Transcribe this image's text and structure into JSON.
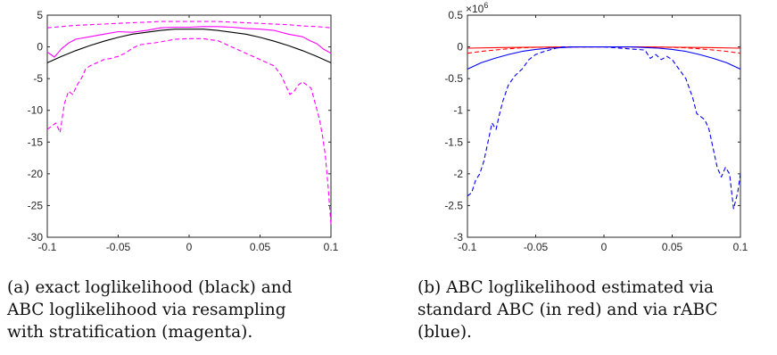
{
  "panels": [
    {
      "caption_lines": [
        "(a) exact loglikelihood (black) and",
        "ABC loglikelihood via resampling",
        "with stratification (magenta)."
      ],
      "chart_data": {
        "type": "line",
        "title": "",
        "xlabel": "",
        "ylabel": "",
        "xlim": [
          -0.1,
          0.1
        ],
        "ylim": [
          -30,
          5
        ],
        "x_ticks": [
          -0.1,
          -0.05,
          0,
          0.05,
          0.1
        ],
        "x_tick_labels": [
          "-0.1",
          "-0.05",
          "0",
          "0.05",
          "0.1"
        ],
        "y_ticks": [
          5,
          0,
          -5,
          -10,
          -15,
          -20,
          -25,
          -30
        ],
        "y_tick_labels": [
          "5",
          "0",
          "-5",
          "-10",
          "-15",
          "-20",
          "-25",
          "-30"
        ],
        "grid": false,
        "series": [
          {
            "color": "#000000",
            "style": "solid",
            "x": [
              -0.1,
              -0.09,
              -0.08,
              -0.07,
              -0.06,
              -0.05,
              -0.04,
              -0.03,
              -0.02,
              -0.01,
              0,
              0.01,
              0.02,
              0.03,
              0.04,
              0.05,
              0.06,
              0.07,
              0.08,
              0.09,
              0.1
            ],
            "y": [
              -2.5,
              -1.5,
              -0.6,
              0.2,
              0.9,
              1.5,
              2.0,
              2.3,
              2.6,
              2.8,
              2.8,
              2.8,
              2.6,
              2.3,
              2.0,
              1.5,
              0.9,
              0.2,
              -0.6,
              -1.5,
              -2.5
            ]
          },
          {
            "color": "#ff00ff",
            "style": "solid",
            "x": [
              -0.1,
              -0.095,
              -0.09,
              -0.085,
              -0.08,
              -0.07,
              -0.06,
              -0.05,
              -0.04,
              -0.03,
              -0.02,
              -0.01,
              0,
              0.01,
              0.02,
              0.03,
              0.04,
              0.05,
              0.06,
              0.07,
              0.08,
              0.085,
              0.09,
              0.095,
              0.1
            ],
            "y": [
              -0.8,
              -1.6,
              -0.3,
              0.6,
              1.2,
              1.6,
              2.0,
              2.4,
              2.3,
              2.6,
              3.0,
              3.1,
              3.1,
              3.2,
              3.2,
              3.1,
              2.9,
              2.8,
              2.6,
              2.0,
              1.6,
              1.0,
              0.5,
              -0.4,
              -1.0
            ]
          },
          {
            "color": "#ff00ff",
            "style": "dashed",
            "x": [
              -0.1,
              -0.09,
              -0.08,
              -0.07,
              -0.06,
              -0.05,
              -0.04,
              -0.03,
              -0.02,
              -0.01,
              0,
              0.01,
              0.02,
              0.03,
              0.04,
              0.05,
              0.06,
              0.07,
              0.08,
              0.09,
              0.1
            ],
            "y": [
              3.0,
              3.2,
              3.4,
              3.5,
              3.6,
              3.7,
              3.8,
              3.9,
              4.0,
              4.0,
              4.0,
              4.0,
              4.0,
              3.9,
              3.8,
              3.7,
              3.6,
              3.5,
              3.3,
              3.2,
              3.0
            ]
          },
          {
            "color": "#ff00ff",
            "style": "dashed",
            "x": [
              -0.1,
              -0.097,
              -0.094,
              -0.091,
              -0.088,
              -0.085,
              -0.082,
              -0.079,
              -0.076,
              -0.073,
              -0.07,
              -0.065,
              -0.06,
              -0.055,
              -0.05,
              -0.045,
              -0.04,
              -0.035,
              -0.03,
              -0.025,
              -0.02,
              -0.015,
              -0.01,
              0,
              0.01,
              0.015,
              0.02,
              0.025,
              0.03,
              0.035,
              0.04,
              0.045,
              0.05,
              0.055,
              0.06,
              0.065,
              0.068,
              0.071,
              0.074,
              0.077,
              0.08,
              0.083,
              0.086,
              0.089,
              0.092,
              0.094,
              0.096,
              0.098,
              0.1
            ],
            "y": [
              -13.0,
              -12.5,
              -12.0,
              -13.5,
              -9.0,
              -7.0,
              -7.5,
              -6.0,
              -5.0,
              -3.5,
              -3.0,
              -2.5,
              -2.0,
              -1.8,
              -1.5,
              -1.0,
              -0.2,
              0.3,
              0.5,
              0.6,
              0.8,
              1.0,
              1.2,
              1.3,
              1.3,
              1.1,
              1.0,
              0.5,
              0.0,
              -0.5,
              -1.0,
              -1.5,
              -2.0,
              -2.5,
              -3.0,
              -4.5,
              -6.0,
              -7.5,
              -7.0,
              -6.0,
              -5.5,
              -6.0,
              -6.5,
              -9.0,
              -11.5,
              -14.0,
              -17.0,
              -22.0,
              -28.0
            ]
          }
        ]
      }
    },
    {
      "caption_lines": [
        "(b) ABC loglikelihood estimated via",
        "standard ABC (in red) and via rABC",
        "(blue)."
      ],
      "chart_data": {
        "type": "line",
        "title": "",
        "xlabel": "",
        "ylabel": "",
        "exponent_label": "×10",
        "exponent_power": "6",
        "xlim": [
          -0.1,
          0.1
        ],
        "ylim": [
          -3,
          0.5
        ],
        "x_ticks": [
          -0.1,
          -0.05,
          0,
          0.05,
          0.1
        ],
        "x_tick_labels": [
          "-0.1",
          "-0.05",
          "0",
          "0.05",
          "0.1"
        ],
        "y_ticks": [
          0.5,
          0,
          -0.5,
          -1,
          -1.5,
          -2,
          -2.5,
          -3
        ],
        "y_tick_labels": [
          "0.5",
          "0",
          "-0.5",
          "-1",
          "-1.5",
          "-2",
          "-2.5",
          "-3"
        ],
        "grid": false,
        "series": [
          {
            "color": "#ff0000",
            "style": "solid",
            "x": [
              -0.1,
              -0.075,
              -0.05,
              -0.025,
              0,
              0.025,
              0.05,
              0.075,
              0.1
            ],
            "y": [
              -0.02,
              -0.01,
              -0.005,
              0,
              0,
              0,
              -0.005,
              -0.01,
              -0.02
            ]
          },
          {
            "color": "#ff0000",
            "style": "dashed",
            "x": [
              -0.1,
              -0.09,
              -0.08,
              -0.07,
              -0.06,
              -0.05,
              -0.04,
              -0.03,
              0,
              0.03,
              0.04,
              0.05,
              0.06,
              0.07,
              0.08,
              0.09,
              0.1
            ],
            "y": [
              -0.1,
              -0.07,
              -0.05,
              -0.03,
              -0.015,
              -0.008,
              -0.004,
              -0.002,
              0,
              -0.002,
              -0.004,
              -0.008,
              -0.015,
              -0.03,
              -0.05,
              -0.07,
              -0.1
            ]
          },
          {
            "color": "#0000ff",
            "style": "solid",
            "x": [
              -0.1,
              -0.09,
              -0.08,
              -0.07,
              -0.06,
              -0.05,
              -0.04,
              -0.03,
              -0.02,
              0,
              0.02,
              0.03,
              0.04,
              0.05,
              0.06,
              0.07,
              0.08,
              0.09,
              0.1
            ],
            "y": [
              -0.35,
              -0.25,
              -0.18,
              -0.12,
              -0.07,
              -0.04,
              -0.02,
              -0.01,
              0,
              0,
              0,
              -0.01,
              -0.02,
              -0.04,
              -0.07,
              -0.12,
              -0.18,
              -0.25,
              -0.35
            ]
          },
          {
            "color": "#0000ff",
            "style": "dashed",
            "x": [
              -0.1,
              -0.097,
              -0.094,
              -0.091,
              -0.088,
              -0.085,
              -0.082,
              -0.079,
              -0.077,
              -0.074,
              -0.07,
              -0.065,
              -0.06,
              -0.055,
              -0.05,
              -0.045,
              -0.04,
              -0.035,
              -0.03,
              0,
              0.03,
              0.034,
              0.038,
              0.042,
              0.046,
              0.05,
              0.055,
              0.06,
              0.065,
              0.068,
              0.071,
              0.074,
              0.077,
              0.08,
              0.083,
              0.086,
              0.089,
              0.092,
              0.095,
              0.098,
              0.1
            ],
            "y": [
              -2.35,
              -2.3,
              -2.1,
              -2.0,
              -1.8,
              -1.5,
              -1.2,
              -1.3,
              -1.1,
              -0.85,
              -0.6,
              -0.45,
              -0.35,
              -0.2,
              -0.12,
              -0.08,
              -0.05,
              -0.02,
              0,
              0,
              -0.05,
              -0.18,
              -0.12,
              -0.2,
              -0.15,
              -0.2,
              -0.35,
              -0.5,
              -0.8,
              -1.05,
              -1.1,
              -1.15,
              -1.3,
              -1.6,
              -1.9,
              -2.05,
              -1.9,
              -2.0,
              -2.55,
              -2.3,
              -2.0
            ]
          }
        ]
      }
    }
  ]
}
